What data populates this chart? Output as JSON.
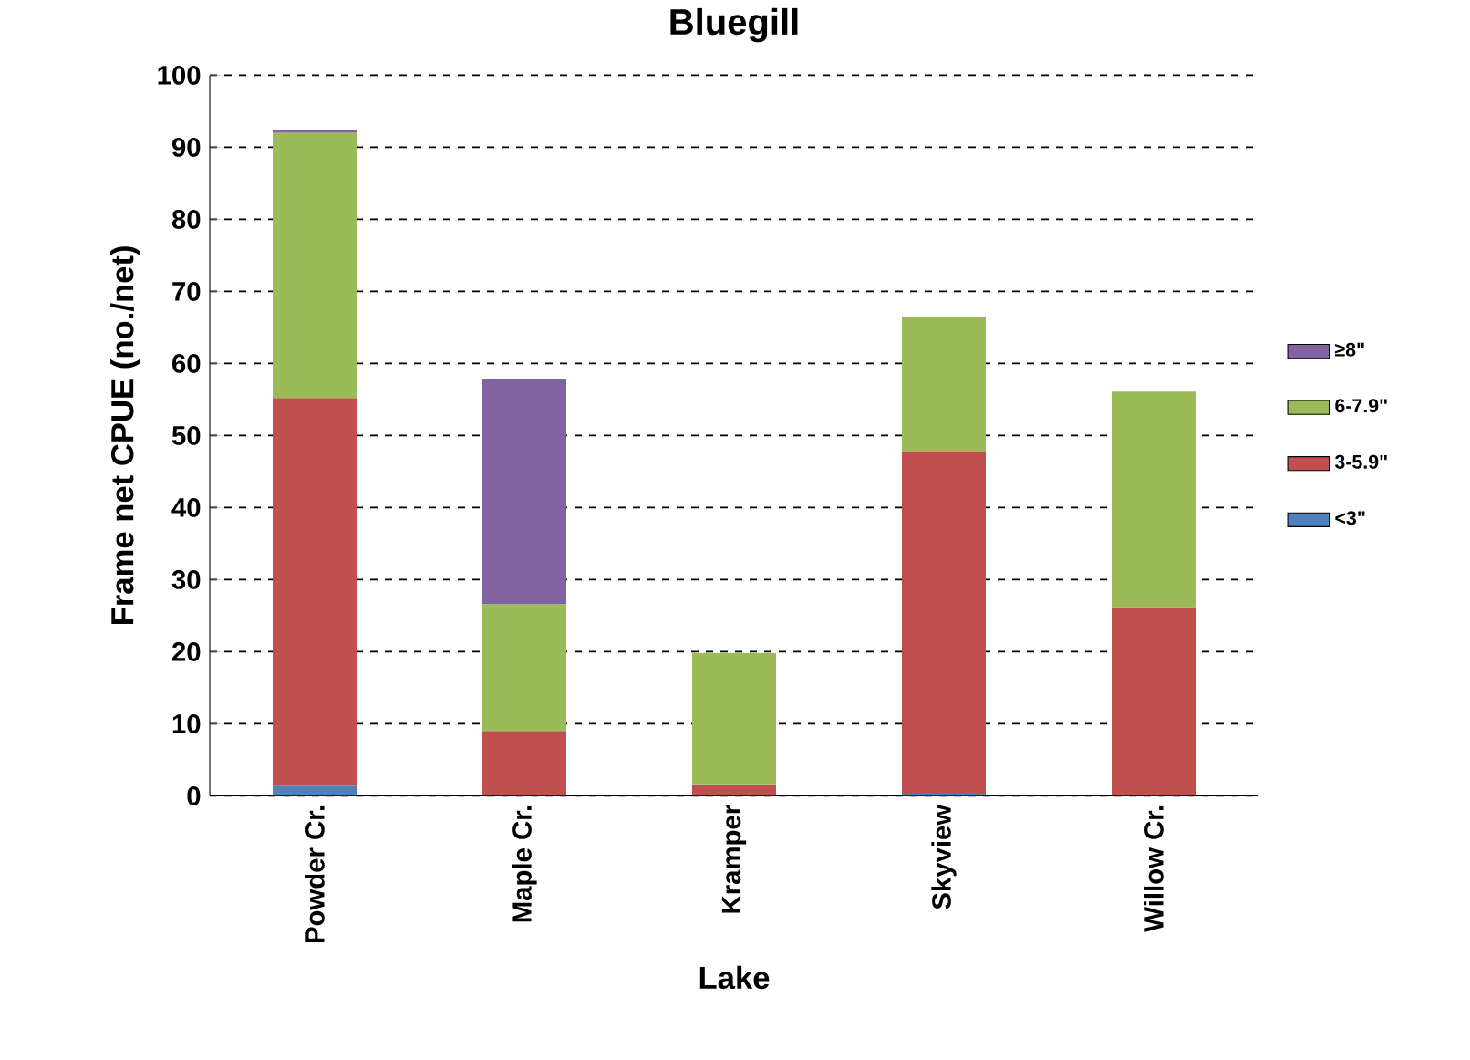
{
  "chart_data": {
    "type": "bar",
    "title": "Bluegill",
    "xlabel": "Lake",
    "ylabel": "Frame net CPUE (no./net)",
    "categories": [
      "Powder Cr.",
      "Maple Cr.",
      "Kramper",
      "Skyview",
      "Willow Cr."
    ],
    "stacked": true,
    "series": [
      {
        "name": "<3\"",
        "color": "#4f81bd",
        "values": [
          1.4,
          null,
          null,
          0.3,
          null
        ]
      },
      {
        "name": "3-5.9\"",
        "color": "#c0504d",
        "values": [
          53.8,
          9.0,
          1.6,
          47.4,
          26.2
        ]
      },
      {
        "name": "6-7.9\"",
        "color": "#9bbb59",
        "values": [
          36.8,
          17.6,
          18.2,
          18.8,
          29.9
        ]
      },
      {
        "name": "≥8\"",
        "color": "#8064a2",
        "values": [
          0.4,
          31.3,
          null,
          null,
          null
        ]
      }
    ],
    "ylim": [
      0,
      100
    ],
    "yticks": [
      0,
      10,
      20,
      30,
      40,
      50,
      60,
      70,
      80,
      90,
      100
    ],
    "grid": "y",
    "legend": "right"
  }
}
